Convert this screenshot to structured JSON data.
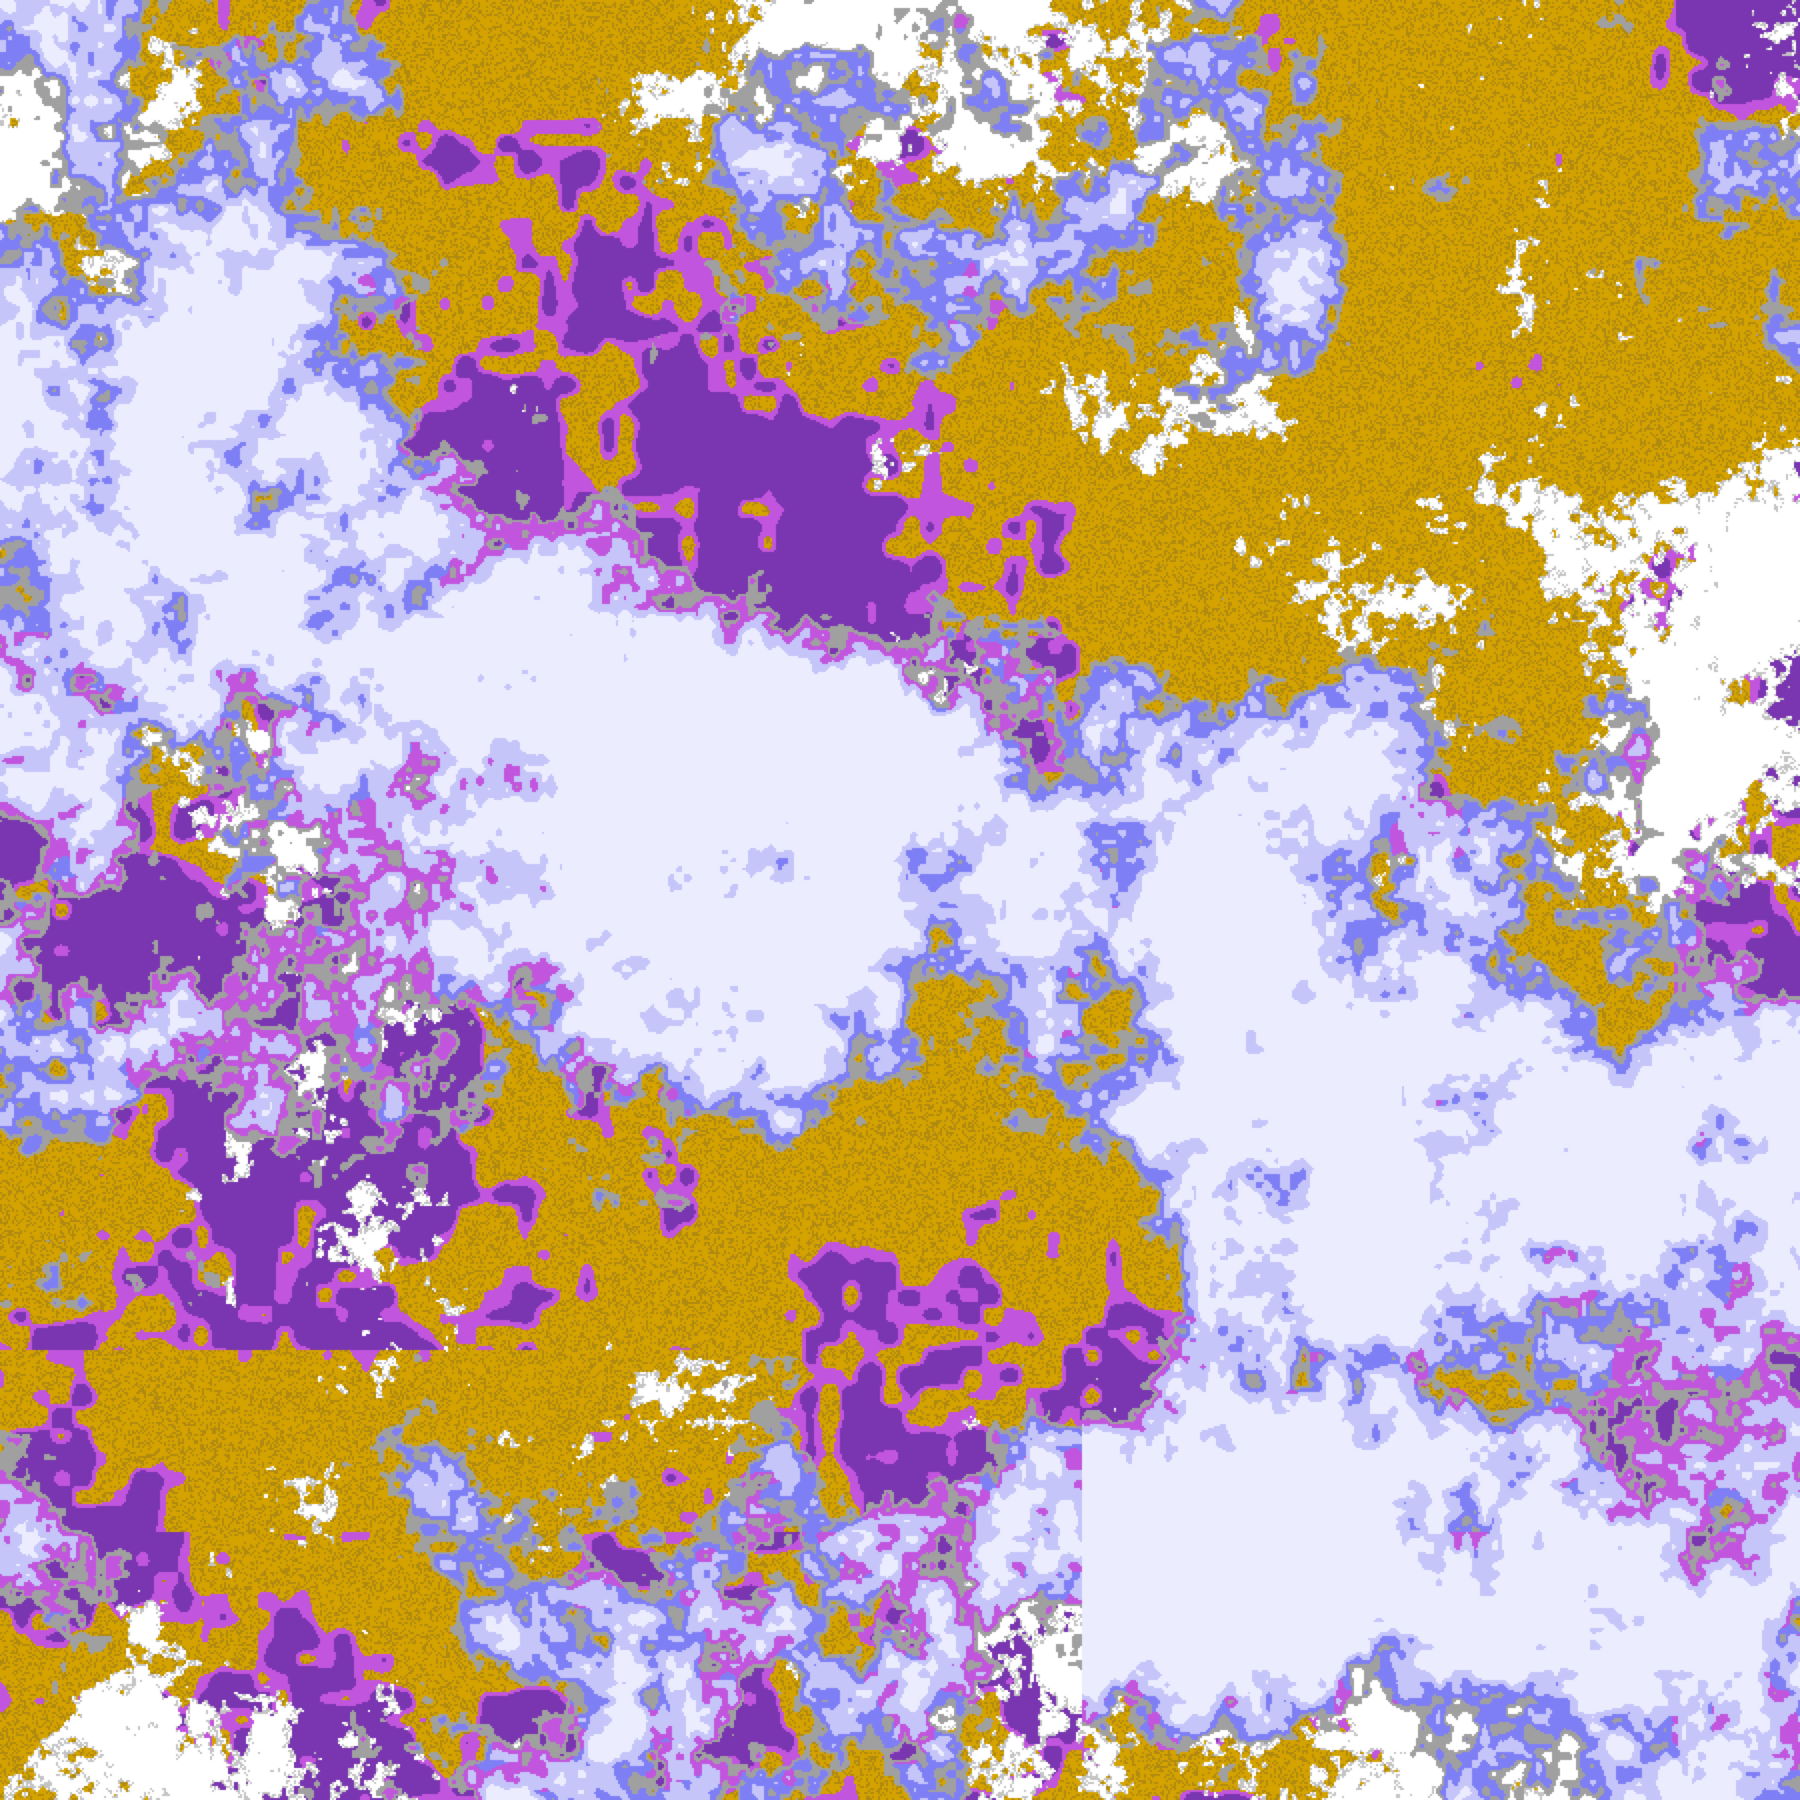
{
  "map": {
    "kind": "classified-raster",
    "palette": {
      "background": "#FFFFFF",
      "gold": "#D4A300",
      "dark_gold": "#B08A10",
      "purple": "#7A35B0",
      "magenta": "#C255DD",
      "periwinkle": "#7F7FF5",
      "lavender": "#C5C5FA",
      "pale_lavender": "#ECECFF",
      "gray": "#A0A0A0",
      "light_gray": "#C4C4C4"
    }
  }
}
